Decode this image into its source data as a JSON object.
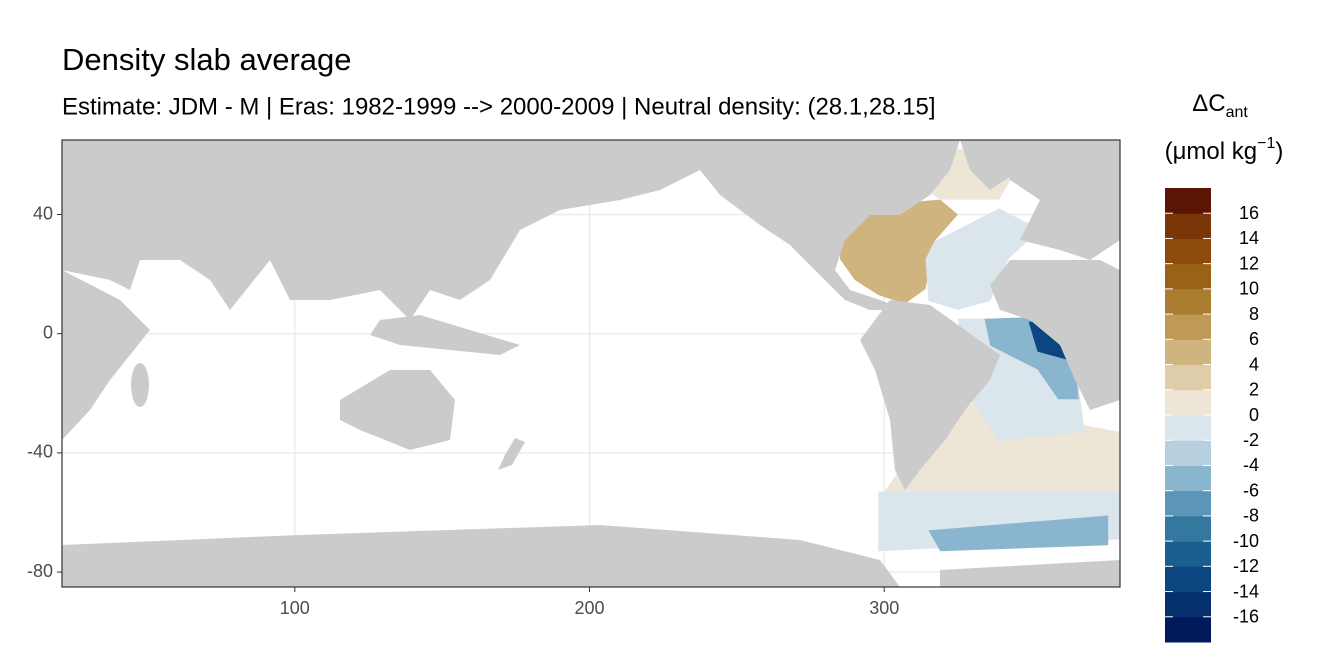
{
  "chart_data": {
    "type": "map",
    "title": "Density slab average",
    "subtitle": "Estimate: JDM - M | Eras: 1982-1999 --> 2000-2009 | Neutral density: (28.1,28.15]",
    "xlim": [
      21,
      380
    ],
    "ylim": [
      -85,
      65
    ],
    "xticks": [
      100,
      200,
      300
    ],
    "yticks": [
      40,
      0,
      -40,
      -80
    ],
    "grid": true,
    "legend": {
      "title_main": "ΔC",
      "title_sub": "ant",
      "unit_open": "(μmol kg",
      "unit_sup": "−1",
      "unit_close": ")",
      "limits": [
        -18,
        18
      ],
      "step": 2,
      "breaks": [
        16,
        14,
        12,
        10,
        8,
        6,
        4,
        2,
        0,
        -2,
        -4,
        -6,
        -8,
        -10,
        -12,
        -14,
        -16
      ],
      "colors": [
        "#011a5c",
        "#062f6d",
        "#0b4680",
        "#1a5d8f",
        "#35789f",
        "#5b95b9",
        "#8ab5cf",
        "#b7d0df",
        "#dbe6ec",
        "#ede5d6",
        "#e0cda9",
        "#cfb47f",
        "#bf9a56",
        "#ab7d2e",
        "#9a6216",
        "#8c4a0c",
        "#7a3508",
        "#5a1505"
      ]
    },
    "regions": [
      {
        "value": 1,
        "points": [
          [
            305,
            62
          ],
          [
            349,
            62
          ],
          [
            339,
            45
          ],
          [
            319,
            45
          ],
          [
            309,
            52
          ]
        ]
      },
      {
        "value": 4,
        "points": [
          [
            285,
            35
          ],
          [
            295,
            43
          ],
          [
            319,
            45
          ],
          [
            325,
            40
          ],
          [
            317,
            31
          ],
          [
            314,
            15
          ],
          [
            307,
            10
          ],
          [
            298,
            13
          ],
          [
            290,
            18
          ],
          [
            285,
            25
          ]
        ]
      },
      {
        "value": -1,
        "points": [
          [
            317,
            31
          ],
          [
            339,
            42
          ],
          [
            353,
            35
          ],
          [
            342,
            25
          ],
          [
            336,
            11
          ],
          [
            325,
            8
          ],
          [
            315,
            11
          ],
          [
            314,
            25
          ]
        ]
      },
      {
        "value": 1,
        "points": [
          [
            322,
            -22
          ],
          [
            380,
            -33
          ],
          [
            380,
            -53
          ],
          [
            298,
            -56
          ],
          [
            305,
            -46
          ]
        ]
      },
      {
        "value": -1,
        "points": [
          [
            325,
            5
          ],
          [
            363,
            5
          ],
          [
            368,
            -33
          ],
          [
            339,
            -36
          ],
          [
            329,
            -22
          ]
        ]
      },
      {
        "value": -6,
        "points": [
          [
            334,
            5
          ],
          [
            363,
            6
          ],
          [
            366,
            -22
          ],
          [
            359,
            -22
          ],
          [
            352,
            -12
          ],
          [
            336,
            -4
          ]
        ]
      },
      {
        "value": -14,
        "points": [
          [
            349,
            4
          ],
          [
            361,
            4
          ],
          [
            363,
            -9
          ],
          [
            352,
            -6
          ]
        ]
      },
      {
        "value": -2,
        "points": [
          [
            298,
            -53
          ],
          [
            380,
            -53
          ],
          [
            380,
            -69
          ],
          [
            298,
            -73
          ]
        ]
      },
      {
        "value": -6,
        "points": [
          [
            315,
            -66
          ],
          [
            376,
            -61
          ],
          [
            376,
            -71
          ],
          [
            319,
            -73
          ]
        ]
      }
    ]
  }
}
